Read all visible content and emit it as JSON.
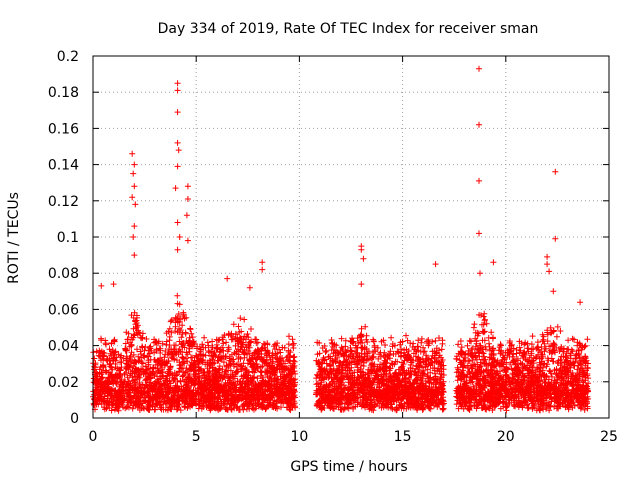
{
  "chart_data": {
    "type": "scatter",
    "title": "Day 334 of 2019, Rate Of TEC Index for receiver sman",
    "xlabel": "GPS time / hours",
    "ylabel": "ROTI / TECUs",
    "xlim": [
      0,
      25
    ],
    "ylim": [
      0,
      0.2
    ],
    "x_ticks": [
      0,
      5,
      10,
      15,
      20,
      25
    ],
    "y_ticks": [
      0,
      0.02,
      0.04,
      0.06,
      0.08,
      0.1,
      0.12,
      0.14,
      0.16,
      0.18,
      0.2
    ],
    "x_tick_labels": [
      "0",
      "5",
      "10",
      "15",
      "20",
      "25"
    ],
    "y_tick_labels": [
      "0",
      "0.02",
      "0.04",
      "0.06",
      "0.08",
      "0.1",
      "0.12",
      "0.14",
      "0.16",
      "0.18",
      "0.2"
    ],
    "grid": true,
    "marker": "+",
    "series_color": "#ff0000",
    "data_segments": [
      {
        "start": 0.0,
        "end": 9.8
      },
      {
        "start": 10.8,
        "end": 17.0
      },
      {
        "start": 17.6,
        "end": 24.0
      }
    ],
    "notable_points": [
      {
        "x": 1.9,
        "y": 0.146
      },
      {
        "x": 2.0,
        "y": 0.14
      },
      {
        "x": 1.95,
        "y": 0.135
      },
      {
        "x": 2.0,
        "y": 0.128
      },
      {
        "x": 1.9,
        "y": 0.122
      },
      {
        "x": 2.05,
        "y": 0.118
      },
      {
        "x": 2.0,
        "y": 0.106
      },
      {
        "x": 1.95,
        "y": 0.1
      },
      {
        "x": 2.0,
        "y": 0.09
      },
      {
        "x": 4.1,
        "y": 0.185
      },
      {
        "x": 4.1,
        "y": 0.181
      },
      {
        "x": 4.1,
        "y": 0.169
      },
      {
        "x": 4.1,
        "y": 0.152
      },
      {
        "x": 4.15,
        "y": 0.148
      },
      {
        "x": 4.1,
        "y": 0.139
      },
      {
        "x": 4.0,
        "y": 0.127
      },
      {
        "x": 4.1,
        "y": 0.108
      },
      {
        "x": 4.2,
        "y": 0.1
      },
      {
        "x": 4.1,
        "y": 0.093
      },
      {
        "x": 4.6,
        "y": 0.128
      },
      {
        "x": 4.6,
        "y": 0.121
      },
      {
        "x": 4.55,
        "y": 0.112
      },
      {
        "x": 4.6,
        "y": 0.098
      },
      {
        "x": 8.2,
        "y": 0.086
      },
      {
        "x": 8.2,
        "y": 0.082
      },
      {
        "x": 13.0,
        "y": 0.095
      },
      {
        "x": 13.0,
        "y": 0.093
      },
      {
        "x": 13.1,
        "y": 0.088
      },
      {
        "x": 13.0,
        "y": 0.074
      },
      {
        "x": 16.6,
        "y": 0.085
      },
      {
        "x": 18.7,
        "y": 0.193
      },
      {
        "x": 18.7,
        "y": 0.162
      },
      {
        "x": 18.7,
        "y": 0.131
      },
      {
        "x": 18.7,
        "y": 0.102
      },
      {
        "x": 18.75,
        "y": 0.08
      },
      {
        "x": 19.4,
        "y": 0.086
      },
      {
        "x": 22.4,
        "y": 0.136
      },
      {
        "x": 22.4,
        "y": 0.099
      },
      {
        "x": 22.0,
        "y": 0.089
      },
      {
        "x": 22.0,
        "y": 0.085
      },
      {
        "x": 22.1,
        "y": 0.081
      },
      {
        "x": 22.3,
        "y": 0.07
      },
      {
        "x": 23.6,
        "y": 0.064
      },
      {
        "x": 1.0,
        "y": 0.074
      },
      {
        "x": 0.4,
        "y": 0.073
      },
      {
        "x": 6.5,
        "y": 0.077
      },
      {
        "x": 7.6,
        "y": 0.072
      }
    ]
  }
}
